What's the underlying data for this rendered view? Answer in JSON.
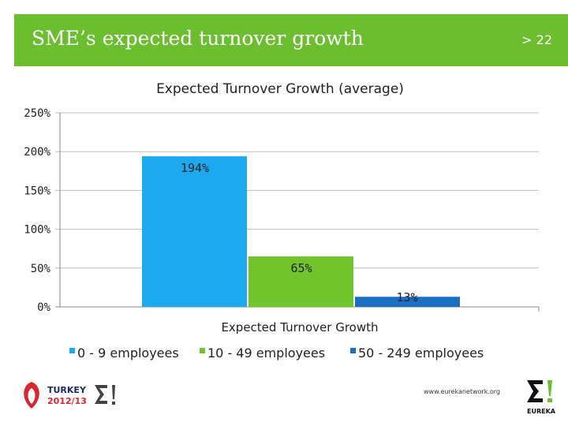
{
  "slide": {
    "title": "SME’s expected turnover growth",
    "page_indicator": "> 22",
    "footer_url": "www.eurekanetwork.org",
    "colors": {
      "header_bg": "#6bbf2e",
      "series_0": "#1ca9f0",
      "series_1": "#70c52b",
      "series_2": "#1a6ec4"
    }
  },
  "logos": {
    "turkey": {
      "country": "TURKEY",
      "years": "2012/13"
    },
    "eureka": {
      "name": "EUREKA",
      "mark": "Σ!"
    }
  },
  "chart_data": {
    "type": "bar",
    "title": "Expected Turnover Growth (average)",
    "categories": [
      "Expected Turnover Growth"
    ],
    "xlabel": "Expected Turnover Growth",
    "ylabel": "",
    "ylim": [
      0,
      250
    ],
    "yticks": [
      0,
      50,
      100,
      150,
      200,
      250
    ],
    "ytick_labels": [
      "0%",
      "50%",
      "100%",
      "150%",
      "200%",
      "250%"
    ],
    "legend_position": "bottom",
    "series": [
      {
        "name": "0 - 9 employees",
        "values": [
          194
        ],
        "label": "194%"
      },
      {
        "name": "10 - 49 employees",
        "values": [
          65
        ],
        "label": "65%"
      },
      {
        "name": "50 - 249 employees",
        "values": [
          13
        ],
        "label": "13%"
      }
    ]
  }
}
